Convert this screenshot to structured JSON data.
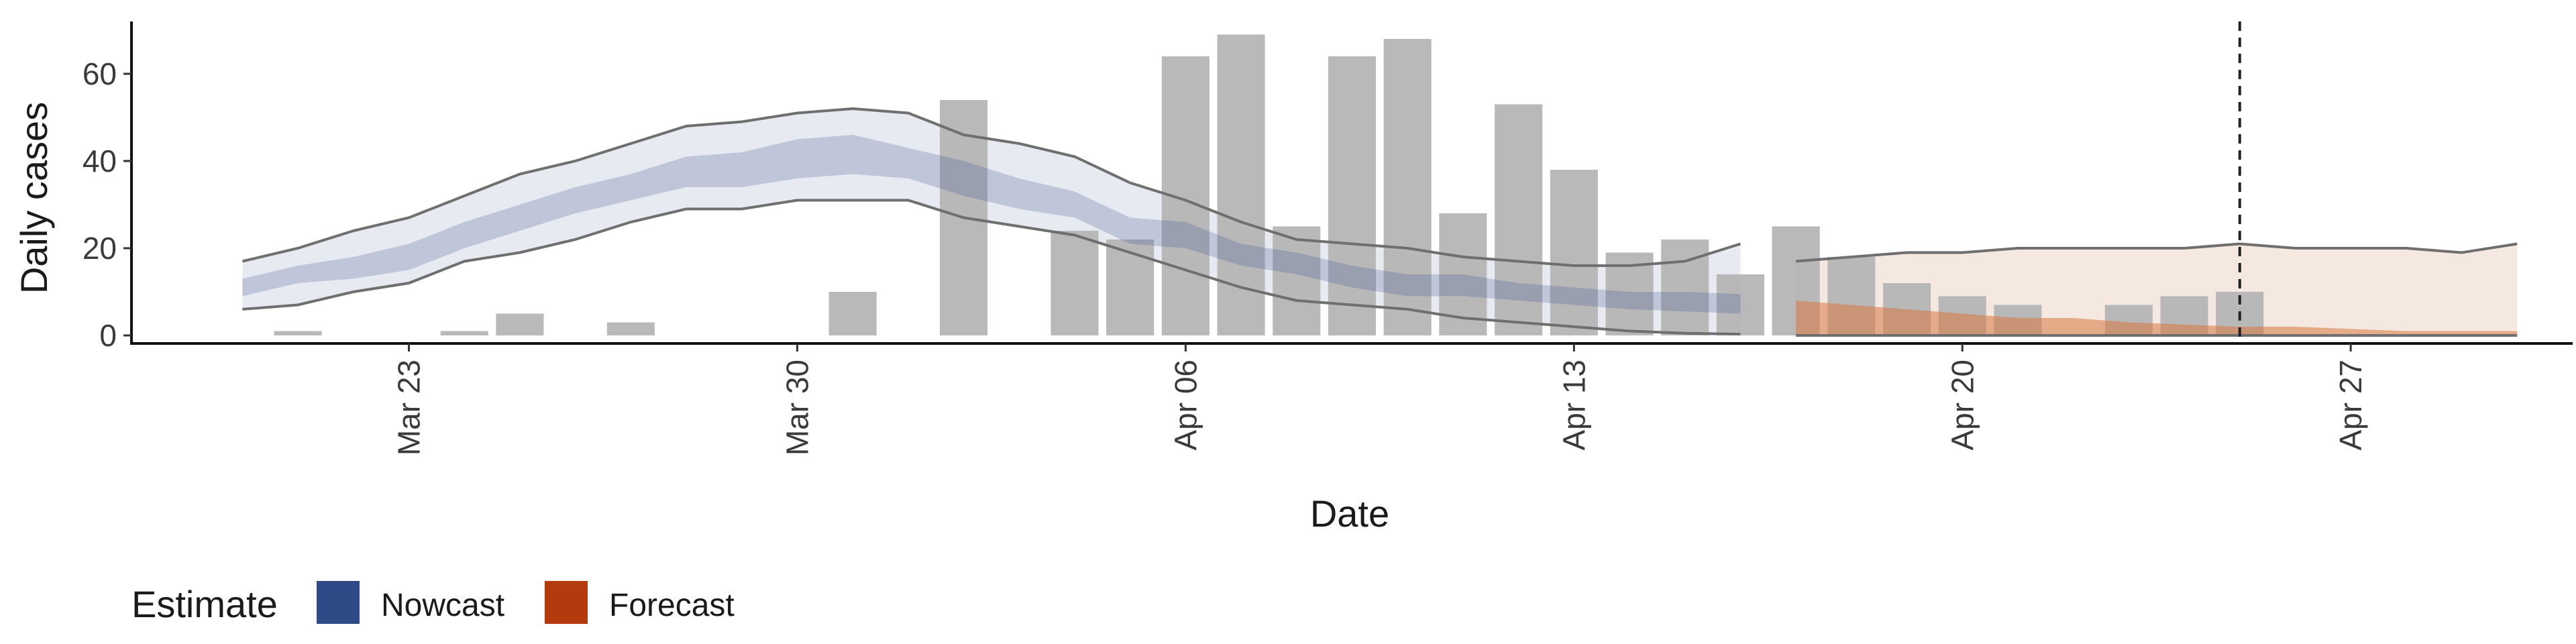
{
  "chart_data": {
    "type": "bar",
    "xlabel": "Date",
    "ylabel": "Daily cases",
    "ylim": [
      0,
      72
    ],
    "xlim": [
      "2020-03-18",
      "2020-05-01"
    ],
    "y_ticks": [
      0,
      20,
      40,
      60
    ],
    "x_ticks": [
      {
        "date": "2020-03-23",
        "label": "Mar 23"
      },
      {
        "date": "2020-03-30",
        "label": "Mar 30"
      },
      {
        "date": "2020-04-06",
        "label": "Apr 06"
      },
      {
        "date": "2020-04-13",
        "label": "Apr 13"
      },
      {
        "date": "2020-04-20",
        "label": "Apr 20"
      },
      {
        "date": "2020-04-27",
        "label": "Apr 27"
      }
    ],
    "grid": false,
    "vertical_line": {
      "date": "2020-04-25",
      "style": "dashed"
    },
    "bars": {
      "color": "#b5b5b5",
      "dates": [
        "2020-03-21",
        "2020-03-22",
        "2020-03-23",
        "2020-03-24",
        "2020-03-25",
        "2020-03-26",
        "2020-03-27",
        "2020-03-28",
        "2020-03-29",
        "2020-03-30",
        "2020-03-31",
        "2020-04-01",
        "2020-04-02",
        "2020-04-03",
        "2020-04-04",
        "2020-04-05",
        "2020-04-06",
        "2020-04-07",
        "2020-04-08",
        "2020-04-09",
        "2020-04-10",
        "2020-04-11",
        "2020-04-12",
        "2020-04-13",
        "2020-04-14",
        "2020-04-15",
        "2020-04-16",
        "2020-04-17",
        "2020-04-18",
        "2020-04-19",
        "2020-04-20",
        "2020-04-21",
        "2020-04-22",
        "2020-04-23",
        "2020-04-24",
        "2020-04-25"
      ],
      "values": [
        1,
        0,
        0,
        1,
        5,
        0,
        3,
        0,
        0,
        0,
        10,
        0,
        54,
        0,
        24,
        22,
        64,
        69,
        25,
        64,
        68,
        28,
        53,
        38,
        19,
        22,
        14,
        25,
        18,
        12,
        9,
        7,
        0,
        7,
        9,
        10
      ]
    },
    "series": [
      {
        "name": "Nowcast",
        "color": "#2e4a87",
        "dates": [
          "2020-03-20",
          "2020-03-21",
          "2020-03-22",
          "2020-03-23",
          "2020-03-24",
          "2020-03-25",
          "2020-03-26",
          "2020-03-27",
          "2020-03-28",
          "2020-03-29",
          "2020-03-30",
          "2020-03-31",
          "2020-04-01",
          "2020-04-02",
          "2020-04-03",
          "2020-04-04",
          "2020-04-05",
          "2020-04-06",
          "2020-04-07",
          "2020-04-08",
          "2020-04-09",
          "2020-04-10",
          "2020-04-11",
          "2020-04-12",
          "2020-04-13",
          "2020-04-14",
          "2020-04-15",
          "2020-04-16"
        ],
        "outer_upper": [
          17,
          20,
          24,
          27,
          32,
          37,
          40,
          44,
          48,
          49,
          51,
          52,
          51,
          46,
          44,
          41,
          35,
          31,
          26,
          22,
          21,
          20,
          18,
          17,
          16,
          16,
          17,
          21
        ],
        "outer_lower": [
          6,
          7,
          10,
          12,
          17,
          19,
          22,
          26,
          29,
          29,
          31,
          31,
          31,
          27,
          25,
          23,
          19,
          15,
          11,
          8,
          7,
          6,
          4,
          3,
          2,
          1,
          0.5,
          0.3
        ],
        "inner_upper": [
          13,
          16,
          18,
          21,
          26,
          30,
          34,
          37,
          41,
          42,
          45,
          46,
          43,
          40,
          36,
          33,
          27,
          26,
          21,
          19,
          16,
          14,
          14,
          12,
          11,
          10,
          10,
          9.5
        ],
        "inner_lower": [
          9,
          12,
          13,
          15,
          20,
          24,
          28,
          31,
          34,
          34,
          36,
          37,
          36,
          32,
          29,
          27,
          21,
          20,
          16,
          14,
          11,
          9,
          9,
          8,
          7,
          6,
          5.5,
          5
        ]
      },
      {
        "name": "Forecast",
        "color": "#b23a0c",
        "dates": [
          "2020-04-17",
          "2020-04-18",
          "2020-04-19",
          "2020-04-20",
          "2020-04-21",
          "2020-04-22",
          "2020-04-23",
          "2020-04-24",
          "2020-04-25",
          "2020-04-26",
          "2020-04-27",
          "2020-04-28",
          "2020-04-29",
          "2020-04-30"
        ],
        "outer_upper": [
          17,
          18,
          19,
          19,
          20,
          20,
          20,
          20,
          21,
          20,
          20,
          20,
          19,
          21
        ],
        "outer_lower": [
          0,
          0,
          0,
          0,
          0,
          0,
          0,
          0,
          0,
          0,
          0,
          0,
          0,
          0
        ],
        "inner_upper": [
          8,
          7,
          6,
          5,
          4,
          4,
          3,
          2.5,
          2,
          2,
          1.5,
          1,
          1,
          1
        ],
        "inner_lower": [
          0,
          0,
          0,
          0,
          0,
          0,
          0,
          0,
          0,
          0,
          0,
          0,
          0,
          0
        ]
      }
    ],
    "legend": {
      "title": "Estimate",
      "position": "bottom-left",
      "items": [
        {
          "label": "Nowcast",
          "color": "#2e4a87"
        },
        {
          "label": "Forecast",
          "color": "#b23a0c"
        }
      ]
    }
  }
}
